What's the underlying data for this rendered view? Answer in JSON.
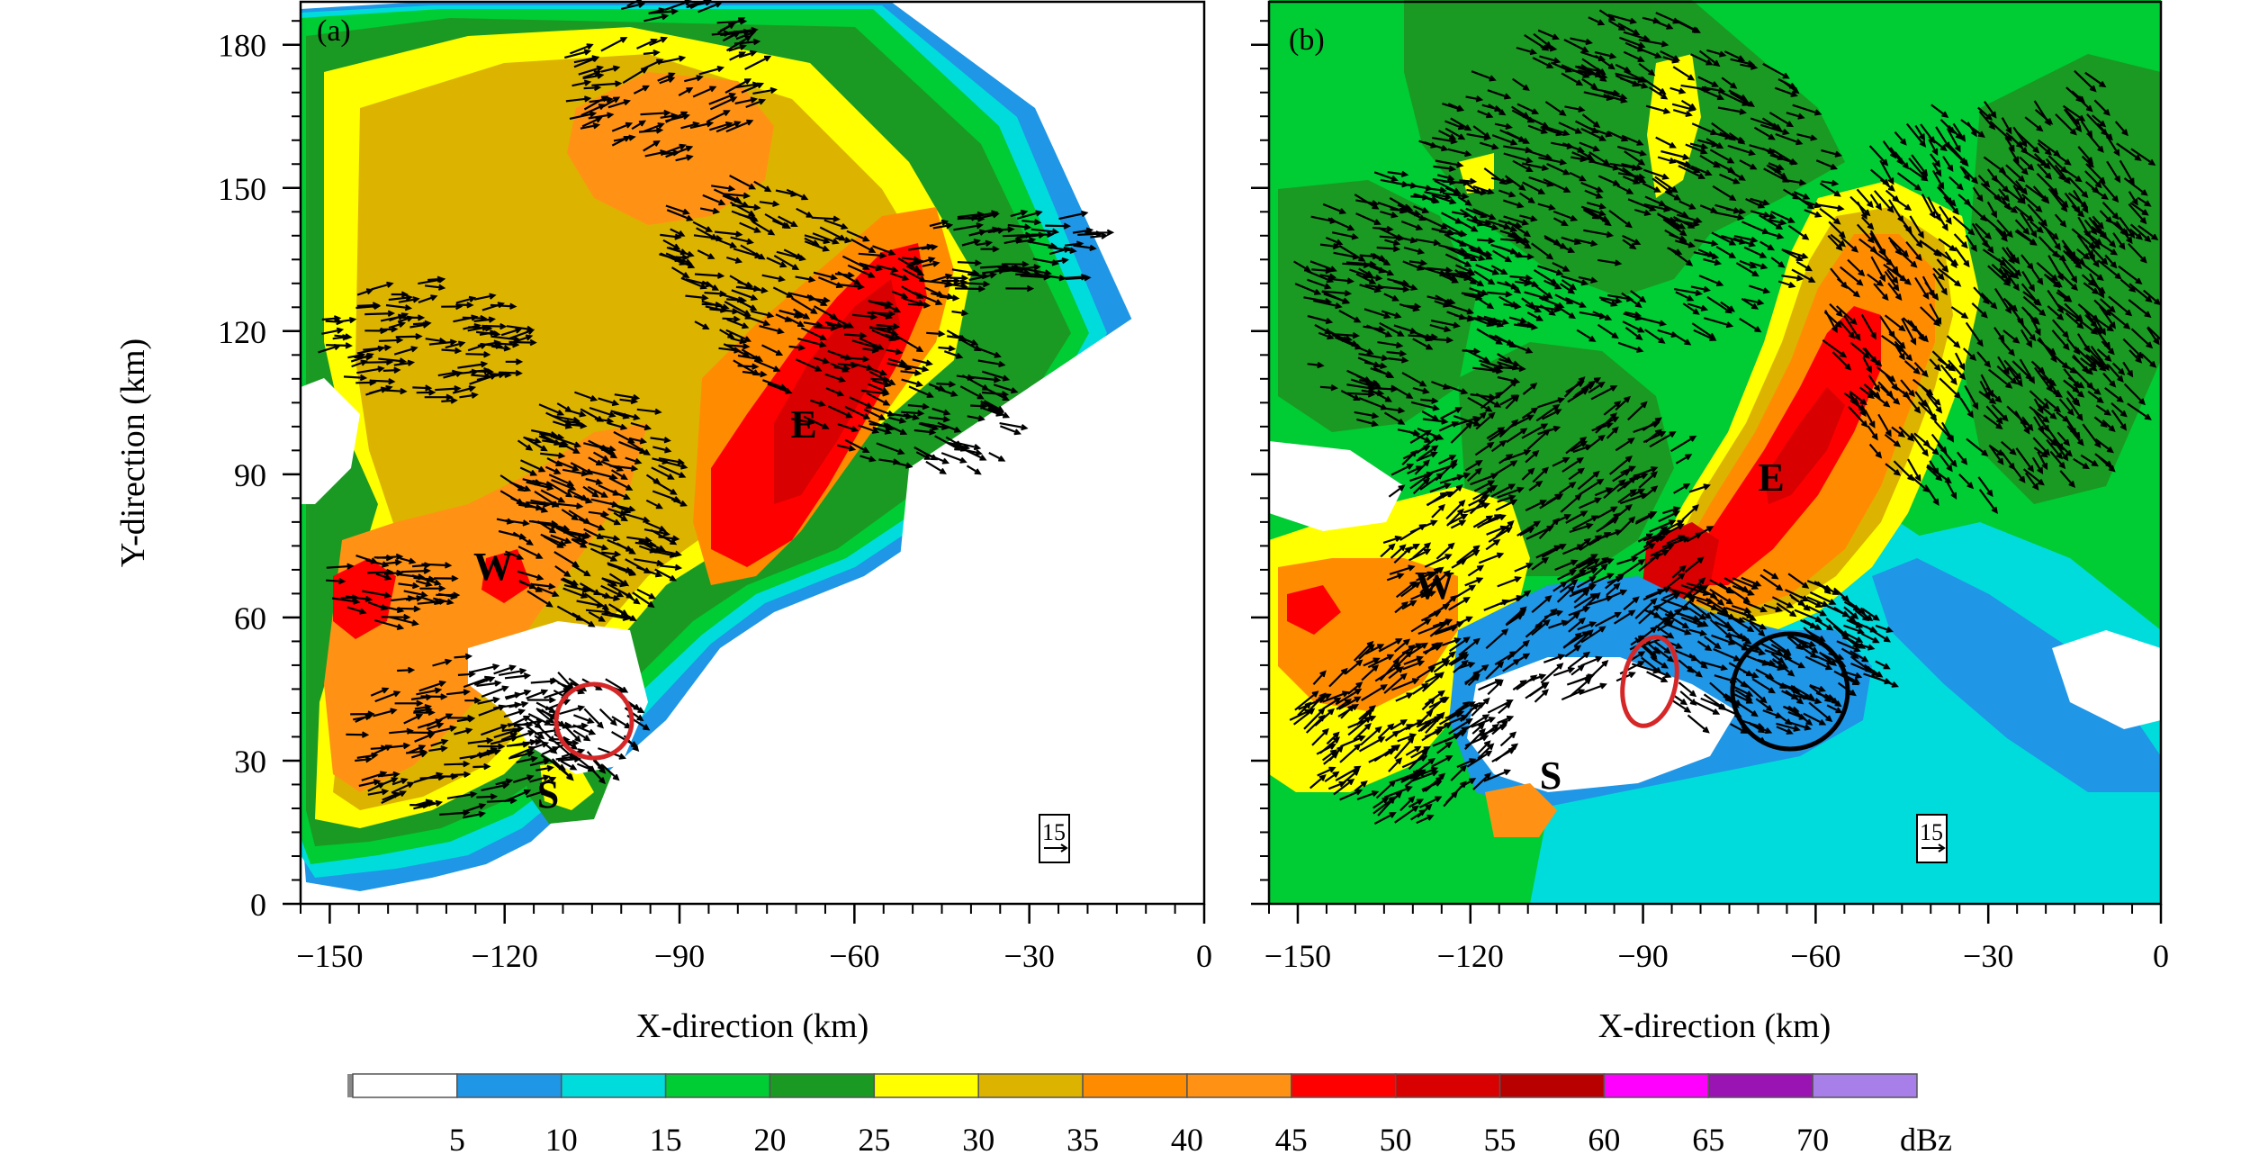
{
  "chart_data": [
    {
      "type": "heatmap",
      "panel": "(a)",
      "xlabel": "X-direction (km)",
      "ylabel": "Y-direction (km)",
      "xlim": [
        -155,
        0
      ],
      "ylim": [
        0,
        189
      ],
      "xticks": [
        -150,
        -120,
        -90,
        -60,
        -30,
        0
      ],
      "yticks": [
        0,
        30,
        60,
        90,
        120,
        150,
        180
      ],
      "storm_labels": [
        {
          "text": "E",
          "x": -68,
          "y": 100
        },
        {
          "text": "W",
          "x": -120,
          "y": 70
        },
        {
          "text": "S",
          "x": -112,
          "y": 23
        }
      ],
      "ellipses": [
        {
          "color": "#d62728",
          "cx": -105,
          "cy": 38,
          "rx": 6.5,
          "ry": 8
        }
      ],
      "reference_vector": {
        "label": "15",
        "x": -27,
        "y": 12
      }
    },
    {
      "type": "heatmap",
      "panel": "(b)",
      "xlabel": "X-direction (km)",
      "ylabel": "",
      "xlim": [
        -155,
        0
      ],
      "ylim": [
        0,
        189
      ],
      "xticks": [
        -150,
        -120,
        -90,
        -60,
        -30,
        0
      ],
      "yticks": [
        0,
        30,
        60,
        90,
        120,
        150,
        180
      ],
      "storm_labels": [
        {
          "text": "E",
          "x": -67,
          "y": 88
        },
        {
          "text": "W",
          "x": -129,
          "y": 66
        },
        {
          "text": "S",
          "x": -104,
          "y": 26
        }
      ],
      "ellipses": [
        {
          "color": "#d62728",
          "cx": -88,
          "cy": 46,
          "rx": 4.5,
          "ry": 9.5,
          "rotate": 12
        },
        {
          "color": "#000000",
          "cx": -63.5,
          "cy": 45,
          "rx": 10,
          "ry": 12.5
        }
      ],
      "reference_vector": {
        "label": "15",
        "x": -33,
        "y": 12
      }
    }
  ],
  "colorbar": {
    "unit": "dBz",
    "tick_labels": [
      "5",
      "10",
      "15",
      "20",
      "25",
      "30",
      "35",
      "40",
      "45",
      "50",
      "55",
      "60",
      "65",
      "70"
    ],
    "colors": [
      "#ffffff",
      "#1f96e6",
      "#00dcdc",
      "#00cc33",
      "#1a9a22",
      "#ffff00",
      "#dcb400",
      "#ff8c00",
      "#ff9214",
      "#ff0000",
      "#d80000",
      "#b80000",
      "#ff00ff",
      "#9a14b4",
      "#a87ee8"
    ]
  }
}
